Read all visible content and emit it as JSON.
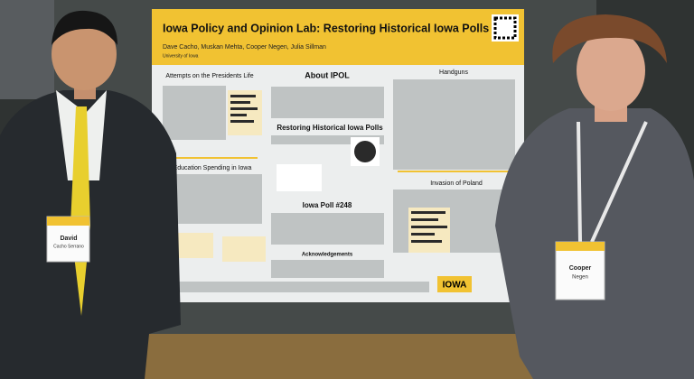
{
  "poster": {
    "title": "Iowa Policy and Opinion Lab: Restoring Historical Iowa Polls",
    "authors": "Dave Cacho, Muskan Mehta, Cooper Negen, Julia Sillman",
    "affiliation": "University of Iowa",
    "sections": [
      "Attempts on the Presidents Life",
      "About IPOL",
      "Restoring Historical Iowa Polls",
      "Handguns",
      "Education Spending in Iowa",
      "Iowa Poll #248",
      "Invasion of Poland",
      "Acknowledgements"
    ],
    "logo": "IOWA"
  },
  "badges": [
    {
      "first": "David",
      "last": "Cacho Serrano"
    },
    {
      "first": "Cooper",
      "last": "Negen"
    }
  ]
}
